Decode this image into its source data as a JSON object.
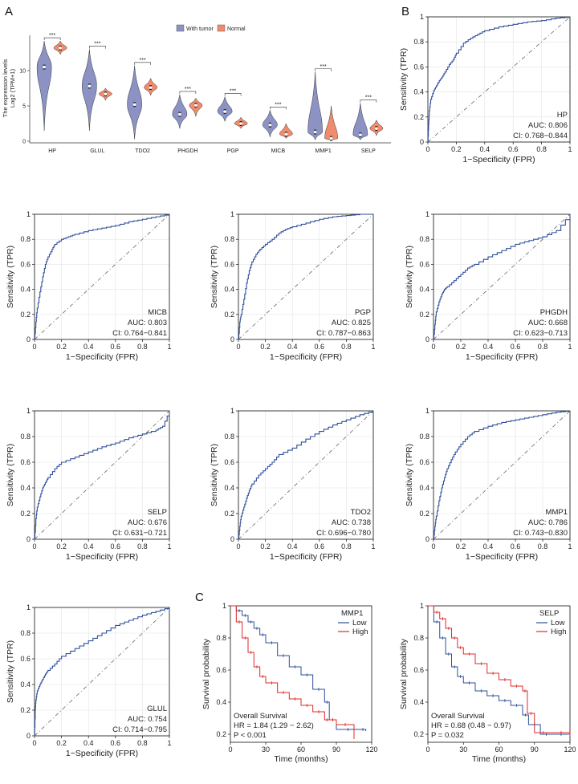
{
  "panel_letters": {
    "a": "A",
    "b": "B",
    "c": "C"
  },
  "colors": {
    "tumor_fill": "#8c93c4",
    "normal_fill": "#f08c6e",
    "roc_line": "#2f4f9a",
    "diag_line": "#666666",
    "km_low": "#2f4f9a",
    "km_high": "#e02828"
  },
  "chart_data": [
    {
      "type": "violin",
      "ylabel": "The expression levels",
      "ylabel_unit": "Log2 (TPM+1)",
      "ylim": [
        0,
        15
      ],
      "yticks": [
        0,
        5,
        10
      ],
      "legend": {
        "position": "top",
        "entries": [
          "With tumor",
          "Normal"
        ]
      },
      "significance": "***",
      "categories": [
        "HP",
        "GLUL",
        "TDO2",
        "PHGDH",
        "PGP",
        "MICB",
        "MMP1",
        "SELP"
      ],
      "series": [
        {
          "name": "With tumor",
          "medians": [
            10.5,
            7.8,
            5.2,
            3.8,
            4.2,
            2.3,
            1.3,
            0.9
          ],
          "min": [
            1.5,
            1.5,
            0.3,
            1.8,
            2.8,
            0.6,
            0.2,
            0.2
          ],
          "max": [
            14.2,
            13.0,
            10.7,
            6.6,
            6.3,
            4.4,
            9.8,
            5.4
          ]
        },
        {
          "name": "Normal",
          "medians": [
            13.2,
            6.7,
            7.6,
            5.1,
            2.5,
            1.0,
            0.4,
            1.8
          ],
          "min": [
            12.3,
            5.8,
            6.5,
            3.5,
            1.8,
            0.4,
            0.1,
            0.8
          ],
          "max": [
            14.2,
            7.5,
            8.9,
            6.1,
            3.4,
            2.5,
            5.0,
            3.0
          ]
        }
      ]
    },
    {
      "type": "line",
      "subtype": "roc",
      "gene": "HP",
      "auc": "AUC: 0.806",
      "ci": "CI: 0.768−0.844",
      "xlabel": "1−Specificity (FPR)",
      "ylabel": "Sensitivity (TPR)",
      "xlim": [
        0,
        1
      ],
      "ylim": [
        0,
        1
      ],
      "x": [
        0,
        0.005,
        0.01,
        0.02,
        0.04,
        0.06,
        0.08,
        0.1,
        0.12,
        0.15,
        0.18,
        0.2,
        0.25,
        0.3,
        0.35,
        0.4,
        0.5,
        0.6,
        0.7,
        0.8,
        0.9,
        1.0
      ],
      "y": [
        0,
        0.14,
        0.25,
        0.34,
        0.41,
        0.45,
        0.49,
        0.52,
        0.56,
        0.62,
        0.66,
        0.71,
        0.79,
        0.83,
        0.86,
        0.89,
        0.92,
        0.94,
        0.96,
        0.97,
        0.99,
        1.0
      ]
    },
    {
      "type": "line",
      "subtype": "roc",
      "gene": "MICB",
      "auc": "AUC: 0.803",
      "ci": "CI: 0.764−0.841",
      "xlabel": "1−Specificity (FPR)",
      "ylabel": "Sensitivity (TPR)",
      "xlim": [
        0,
        1
      ],
      "ylim": [
        0,
        1
      ],
      "x": [
        0,
        0.01,
        0.02,
        0.04,
        0.06,
        0.08,
        0.1,
        0.13,
        0.15,
        0.2,
        0.25,
        0.3,
        0.4,
        0.5,
        0.6,
        0.7,
        0.8,
        0.9,
        1.0
      ],
      "y": [
        0,
        0.14,
        0.25,
        0.38,
        0.5,
        0.6,
        0.66,
        0.72,
        0.76,
        0.8,
        0.82,
        0.84,
        0.87,
        0.89,
        0.91,
        0.94,
        0.96,
        0.98,
        1.0
      ]
    },
    {
      "type": "line",
      "subtype": "roc",
      "gene": "PGP",
      "auc": "AUC: 0.825",
      "ci": "CI: 0.787−0.863",
      "xlabel": "1−Specificity (FPR)",
      "ylabel": "Sensitivity (TPR)",
      "xlim": [
        0,
        1
      ],
      "ylim": [
        0,
        1
      ],
      "x": [
        0,
        0.01,
        0.02,
        0.04,
        0.06,
        0.08,
        0.1,
        0.13,
        0.16,
        0.2,
        0.25,
        0.3,
        0.35,
        0.4,
        0.5,
        0.6,
        0.7,
        0.8,
        0.9,
        1.0
      ],
      "y": [
        0,
        0.14,
        0.2,
        0.32,
        0.45,
        0.55,
        0.62,
        0.68,
        0.72,
        0.76,
        0.8,
        0.85,
        0.88,
        0.9,
        0.93,
        0.96,
        0.98,
        0.99,
        1.0,
        1.0
      ]
    },
    {
      "type": "line",
      "subtype": "roc",
      "gene": "PHGDH",
      "auc": "AUC: 0.668",
      "ci": "CI: 0.623−0.713",
      "xlabel": "1−Specificity (FPR)",
      "ylabel": "Sensitivity (TPR)",
      "xlim": [
        0,
        1
      ],
      "ylim": [
        0,
        1
      ],
      "x": [
        0,
        0.01,
        0.02,
        0.04,
        0.06,
        0.08,
        0.1,
        0.15,
        0.2,
        0.25,
        0.3,
        0.4,
        0.5,
        0.6,
        0.7,
        0.8,
        0.9,
        1.0
      ],
      "y": [
        0,
        0.12,
        0.22,
        0.3,
        0.36,
        0.4,
        0.42,
        0.47,
        0.52,
        0.57,
        0.6,
        0.66,
        0.71,
        0.76,
        0.79,
        0.82,
        0.87,
        1.0
      ]
    },
    {
      "type": "line",
      "subtype": "roc",
      "gene": "SELP",
      "auc": "AUC: 0.676",
      "ci": "CI: 0.631−0.721",
      "xlabel": "1−Specificity (FPR)",
      "ylabel": "Sensitivity (TPR)",
      "xlim": [
        0,
        1
      ],
      "ylim": [
        0,
        1
      ],
      "x": [
        0,
        0.01,
        0.02,
        0.04,
        0.06,
        0.08,
        0.1,
        0.15,
        0.2,
        0.3,
        0.4,
        0.5,
        0.6,
        0.7,
        0.8,
        0.9,
        0.95,
        1.0
      ],
      "y": [
        0,
        0.16,
        0.25,
        0.33,
        0.4,
        0.44,
        0.48,
        0.55,
        0.6,
        0.64,
        0.68,
        0.72,
        0.75,
        0.79,
        0.82,
        0.85,
        0.88,
        1.0
      ]
    },
    {
      "type": "line",
      "subtype": "roc",
      "gene": "TDO2",
      "auc": "AUC: 0.738",
      "ci": "CI: 0.696−0.780",
      "xlabel": "1−Specificity (FPR)",
      "ylabel": "Sensitivity (TPR)",
      "xlim": [
        0,
        1
      ],
      "ylim": [
        0,
        1
      ],
      "x": [
        0,
        0.01,
        0.02,
        0.04,
        0.06,
        0.08,
        0.1,
        0.15,
        0.2,
        0.25,
        0.3,
        0.4,
        0.5,
        0.6,
        0.7,
        0.8,
        0.9,
        1.0
      ],
      "y": [
        0,
        0.1,
        0.18,
        0.25,
        0.32,
        0.38,
        0.43,
        0.5,
        0.55,
        0.6,
        0.66,
        0.71,
        0.78,
        0.84,
        0.89,
        0.93,
        0.97,
        1.0
      ]
    },
    {
      "type": "line",
      "subtype": "roc",
      "gene": "MMP1",
      "auc": "AUC: 0.786",
      "ci": "CI: 0.743−0.830",
      "xlabel": "1−Specificity (FPR)",
      "ylabel": "Sensitivity (TPR)",
      "xlim": [
        0,
        1
      ],
      "ylim": [
        0,
        1
      ],
      "x": [
        0,
        0.01,
        0.02,
        0.04,
        0.06,
        0.08,
        0.1,
        0.13,
        0.16,
        0.2,
        0.25,
        0.3,
        0.4,
        0.5,
        0.6,
        0.7,
        0.8,
        0.9,
        1.0
      ],
      "y": [
        0,
        0.1,
        0.18,
        0.3,
        0.4,
        0.48,
        0.55,
        0.62,
        0.68,
        0.74,
        0.8,
        0.84,
        0.88,
        0.91,
        0.93,
        0.95,
        0.97,
        0.99,
        1.0
      ]
    },
    {
      "type": "line",
      "subtype": "roc",
      "gene": "GLUL",
      "auc": "AUC: 0.754",
      "ci": "CI: 0.714−0.795",
      "xlabel": "1−Specificity (FPR)",
      "ylabel": "Sensitivity (TPR)",
      "xlim": [
        0,
        1
      ],
      "ylim": [
        0,
        1
      ],
      "x": [
        0,
        0.005,
        0.01,
        0.02,
        0.04,
        0.06,
        0.08,
        0.1,
        0.15,
        0.2,
        0.3,
        0.4,
        0.5,
        0.6,
        0.7,
        0.8,
        0.9,
        1.0
      ],
      "y": [
        0,
        0.2,
        0.28,
        0.35,
        0.4,
        0.44,
        0.48,
        0.51,
        0.56,
        0.62,
        0.68,
        0.74,
        0.8,
        0.86,
        0.9,
        0.94,
        0.97,
        1.0
      ]
    },
    {
      "type": "line",
      "subtype": "kaplan-meier",
      "gene": "MMP1",
      "xlabel": "Time (months)",
      "ylabel": "Survival probability",
      "xlim": [
        0,
        120
      ],
      "ylim": [
        0.15,
        1.0
      ],
      "xticks": [
        0,
        30,
        60,
        90,
        120
      ],
      "yticks": [
        0.2,
        0.4,
        0.6,
        0.8,
        1.0
      ],
      "legend": {
        "position": "top-right",
        "entries": [
          "Low",
          "High"
        ]
      },
      "annotations": [
        "Overall Survival",
        "HR = 1.84 (1.29 − 2.62)",
        "P < 0.001"
      ],
      "series": [
        {
          "name": "Low",
          "x": [
            0,
            5,
            10,
            15,
            20,
            25,
            30,
            40,
            50,
            60,
            70,
            80,
            84,
            90,
            110,
            115
          ],
          "y": [
            1.0,
            0.97,
            0.94,
            0.9,
            0.86,
            0.82,
            0.77,
            0.69,
            0.62,
            0.57,
            0.48,
            0.4,
            0.29,
            0.23,
            0.23,
            0.22
          ]
        },
        {
          "name": "High",
          "x": [
            0,
            5,
            10,
            15,
            20,
            25,
            30,
            40,
            50,
            60,
            70,
            80,
            84,
            90,
            105
          ],
          "y": [
            1.0,
            0.9,
            0.8,
            0.71,
            0.62,
            0.56,
            0.52,
            0.46,
            0.42,
            0.38,
            0.34,
            0.29,
            0.29,
            0.26,
            0.17
          ]
        }
      ]
    },
    {
      "type": "line",
      "subtype": "kaplan-meier",
      "gene": "SELP",
      "xlabel": "Time (months)",
      "ylabel": "Survival probability",
      "xlim": [
        0,
        120
      ],
      "ylim": [
        0.15,
        1.0
      ],
      "xticks": [
        0,
        30,
        60,
        90,
        120
      ],
      "yticks": [
        0.2,
        0.4,
        0.6,
        0.8,
        1.0
      ],
      "legend": {
        "position": "top-right",
        "entries": [
          "Low",
          "High"
        ]
      },
      "annotations": [
        "Overall Survival",
        "HR = 0.68 (0.48 − 0.97)",
        "P = 0.032"
      ],
      "series": [
        {
          "name": "Low",
          "x": [
            0,
            5,
            10,
            15,
            20,
            25,
            30,
            40,
            50,
            60,
            70,
            80,
            85,
            95,
            105,
            120
          ],
          "y": [
            1.0,
            0.9,
            0.8,
            0.7,
            0.62,
            0.56,
            0.52,
            0.47,
            0.44,
            0.41,
            0.38,
            0.32,
            0.26,
            0.2,
            0.2,
            0.2
          ]
        },
        {
          "name": "High",
          "x": [
            0,
            5,
            10,
            15,
            20,
            25,
            30,
            40,
            50,
            60,
            70,
            80,
            84,
            90,
            105,
            120
          ],
          "y": [
            1.0,
            0.96,
            0.92,
            0.86,
            0.8,
            0.74,
            0.7,
            0.64,
            0.58,
            0.54,
            0.5,
            0.47,
            0.33,
            0.21,
            0.21,
            0.19
          ]
        }
      ]
    }
  ]
}
